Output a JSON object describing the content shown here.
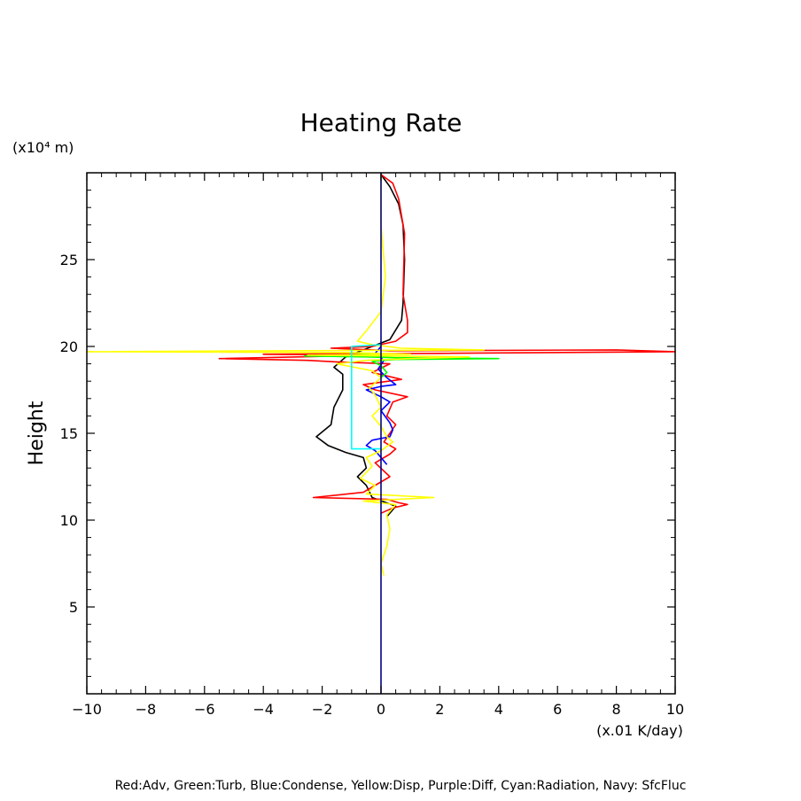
{
  "chart_data": {
    "type": "line",
    "title": "Heating Rate",
    "xlabel": "(x.01 K/day)",
    "ylabel": "Height",
    "y_unit_label": "(x10⁴ m)",
    "xlim": [
      -10,
      10
    ],
    "ylim": [
      0,
      30
    ],
    "x_ticks": [
      -10,
      -8,
      -6,
      -4,
      -2,
      0,
      2,
      4,
      6,
      8,
      10
    ],
    "y_ticks": [
      5,
      10,
      15,
      20,
      25
    ],
    "grid": false,
    "caption": "Red:Adv, Green:Turb, Blue:Condense, Yellow:Disp, Purple:Diff, Cyan:Radiation, Navy: SfcFluc",
    "series": [
      {
        "color": "#000000",
        "points": [
          [
            0,
            29.9
          ],
          [
            0.3,
            29.2
          ],
          [
            0.6,
            28.2
          ],
          [
            0.75,
            27
          ],
          [
            0.8,
            25
          ],
          [
            0.75,
            22.5
          ],
          [
            0.7,
            21.5
          ],
          [
            0.3,
            20.4
          ],
          [
            -0.3,
            20
          ],
          [
            -1.2,
            19.4
          ],
          [
            -1.6,
            18.8
          ],
          [
            -1.3,
            18.4
          ],
          [
            -1.3,
            17.5
          ],
          [
            -1.6,
            16.5
          ],
          [
            -1.7,
            15.5
          ],
          [
            -2.2,
            14.8
          ],
          [
            -1.8,
            14.3
          ],
          [
            -1.2,
            13.9
          ],
          [
            -0.6,
            13.6
          ],
          [
            -0.5,
            13
          ],
          [
            -0.8,
            12.5
          ],
          [
            -0.5,
            12
          ],
          [
            -0.3,
            11.3
          ],
          [
            0.5,
            10.8
          ],
          [
            0.2,
            10.2
          ]
        ]
      },
      {
        "color": "#ff0000",
        "points": [
          [
            0,
            29.9
          ],
          [
            0.4,
            29.4
          ],
          [
            0.6,
            28.5
          ],
          [
            0.8,
            26.5
          ],
          [
            0.75,
            23
          ],
          [
            0.9,
            21.5
          ],
          [
            0.9,
            20.8
          ],
          [
            0.5,
            20.3
          ],
          [
            -0.3,
            20
          ],
          [
            -1.7,
            19.9
          ],
          [
            -0.3,
            19.8
          ],
          [
            0.3,
            19.75
          ],
          [
            8,
            19.8
          ],
          [
            10,
            19.7
          ],
          [
            2,
            19.6
          ],
          [
            -4,
            19.55
          ],
          [
            -0.3,
            19.5
          ],
          [
            -2.8,
            19.4
          ],
          [
            -5.5,
            19.3
          ],
          [
            -2.5,
            19.2
          ],
          [
            -1.4,
            19.1
          ],
          [
            0.3,
            19
          ],
          [
            -0.3,
            18.5
          ],
          [
            0.7,
            18.1
          ],
          [
            -0.6,
            17.8
          ],
          [
            -0.2,
            17.5
          ],
          [
            0.9,
            17.1
          ],
          [
            0.4,
            16.8
          ],
          [
            0.2,
            16
          ],
          [
            0.5,
            15.5
          ],
          [
            0.3,
            15
          ],
          [
            0.1,
            14.5
          ],
          [
            0.5,
            14.1
          ],
          [
            0.3,
            13.8
          ],
          [
            -0.2,
            13.3
          ],
          [
            0.3,
            12.5
          ],
          [
            -0.6,
            11.6
          ],
          [
            -2.3,
            11.3
          ],
          [
            0.2,
            11.2
          ],
          [
            0.6,
            11
          ],
          [
            0.9,
            10.9
          ],
          [
            0.4,
            10.7
          ],
          [
            0,
            10.4
          ]
        ]
      },
      {
        "color": "#0000ff",
        "points": [
          [
            0,
            20
          ],
          [
            -0.2,
            19.6
          ],
          [
            0.1,
            19.2
          ],
          [
            -0.1,
            18.7
          ],
          [
            0.2,
            18.2
          ],
          [
            0.5,
            17.8
          ],
          [
            0,
            17.7
          ],
          [
            -0.5,
            17.5
          ],
          [
            0,
            17.1
          ],
          [
            0.3,
            16.8
          ],
          [
            0,
            16.3
          ],
          [
            0.3,
            15.6
          ],
          [
            0.4,
            15.2
          ],
          [
            0.3,
            14.8
          ],
          [
            -0.3,
            14.6
          ],
          [
            -0.5,
            14.3
          ],
          [
            -0.2,
            14
          ],
          [
            0,
            13.6
          ],
          [
            0.2,
            13.2
          ]
        ]
      },
      {
        "color": "#00ff00",
        "points": [
          [
            0,
            19.6
          ],
          [
            -1.2,
            19.5
          ],
          [
            -2.6,
            19.45
          ],
          [
            -0.5,
            19.4
          ],
          [
            0.5,
            19.35
          ],
          [
            4,
            19.3
          ],
          [
            0.5,
            19.25
          ],
          [
            -0.3,
            19.15
          ],
          [
            0,
            18.9
          ],
          [
            0.2,
            18.5
          ],
          [
            0,
            18.2
          ]
        ]
      },
      {
        "color": "#ffff00",
        "points": [
          [
            0,
            29.9
          ],
          [
            0,
            27
          ],
          [
            0.15,
            24
          ],
          [
            0,
            22
          ],
          [
            -0.5,
            20.9
          ],
          [
            -0.8,
            20.3
          ],
          [
            -0.3,
            20.1
          ],
          [
            0.7,
            19.9
          ],
          [
            3.5,
            19.8
          ],
          [
            -10,
            19.7
          ],
          [
            -1,
            19.65
          ],
          [
            1,
            19.55
          ],
          [
            -2.5,
            19.5
          ],
          [
            0.5,
            19.45
          ],
          [
            3,
            19.4
          ],
          [
            1,
            19.3
          ],
          [
            -0.5,
            19.2
          ],
          [
            -1.5,
            19.0
          ],
          [
            -0.3,
            18.6
          ],
          [
            0,
            18.2
          ],
          [
            -0.4,
            17.6
          ],
          [
            -0.2,
            17.2
          ],
          [
            0,
            16.5
          ],
          [
            -0.3,
            16
          ],
          [
            0,
            15.4
          ],
          [
            0.2,
            14.8
          ],
          [
            0.4,
            14.5
          ],
          [
            0,
            14
          ],
          [
            -0.5,
            13.6
          ],
          [
            -0.3,
            13.1
          ],
          [
            -0.7,
            12.4
          ],
          [
            -0.2,
            12
          ],
          [
            -0.5,
            11.5
          ],
          [
            1.8,
            11.3
          ],
          [
            -0.6,
            11.1
          ],
          [
            0.5,
            10.9
          ],
          [
            0.2,
            10.3
          ],
          [
            0.3,
            9.5
          ],
          [
            0.2,
            8.5
          ],
          [
            0,
            7.5
          ],
          [
            0.1,
            6.8
          ]
        ]
      },
      {
        "color": "#00ffff",
        "points": [
          [
            0,
            20.1
          ],
          [
            -1,
            20
          ],
          [
            -1,
            19.2
          ],
          [
            -1,
            17
          ],
          [
            -1,
            14.8
          ],
          [
            -1,
            14.1
          ],
          [
            0,
            14.1
          ]
        ]
      },
      {
        "color": "#000080",
        "points": [
          [
            0,
            0
          ],
          [
            0,
            30
          ]
        ]
      }
    ]
  }
}
